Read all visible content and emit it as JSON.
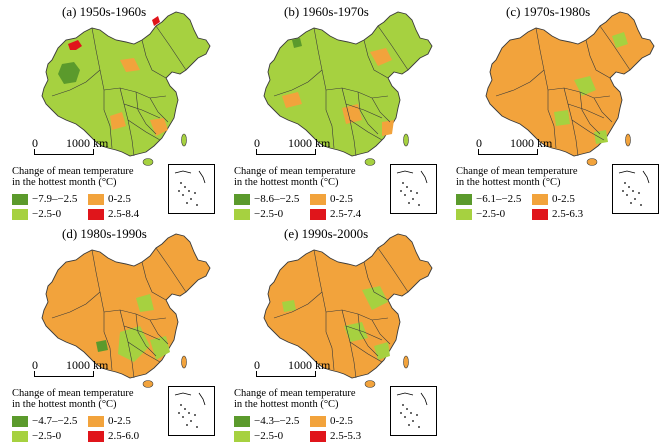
{
  "colors": {
    "dark_green": "#5b9a2c",
    "light_green": "#a6d140",
    "orange": "#f2a33c",
    "red": "#e0151b",
    "border": "#3a3a3a"
  },
  "scale_bar": {
    "zero": "0",
    "distance": "1000 km"
  },
  "legend_title_line1": "Change of mean temperature",
  "legend_title_line2": "in the hottest month (°C)",
  "panels": [
    {
      "title": "(a) 1950s-1960s",
      "dominant": "light_green",
      "legend": [
        {
          "label": "−7.9–−2.5",
          "color": "dark_green"
        },
        {
          "label": "0-2.5",
          "color": "orange"
        },
        {
          "label": "−2.5-0",
          "color": "light_green"
        },
        {
          "label": "2.5-8.4",
          "color": "red"
        }
      ]
    },
    {
      "title": "(b) 1960s-1970s",
      "dominant": "light_green",
      "legend": [
        {
          "label": "−8.6–−2.5",
          "color": "dark_green"
        },
        {
          "label": "0-2.5",
          "color": "orange"
        },
        {
          "label": "−2.5-0",
          "color": "light_green"
        },
        {
          "label": "2.5-7.4",
          "color": "red"
        }
      ]
    },
    {
      "title": "(c) 1970s-1980s",
      "dominant": "orange",
      "legend": [
        {
          "label": "−6.1–−2.5",
          "color": "dark_green"
        },
        {
          "label": "0-2.5",
          "color": "orange"
        },
        {
          "label": "−2.5-0",
          "color": "light_green"
        },
        {
          "label": "2.5-6.3",
          "color": "red"
        }
      ]
    },
    {
      "title": "(d) 1980s-1990s",
      "dominant": "orange",
      "legend": [
        {
          "label": "−4.7–−2.5",
          "color": "dark_green"
        },
        {
          "label": "0-2.5",
          "color": "orange"
        },
        {
          "label": "−2.5-0",
          "color": "light_green"
        },
        {
          "label": "2.5-6.0",
          "color": "red"
        }
      ]
    },
    {
      "title": "(e) 1990s-2000s",
      "dominant": "orange",
      "legend": [
        {
          "label": "−4.3–−2.5",
          "color": "dark_green"
        },
        {
          "label": "0-2.5",
          "color": "orange"
        },
        {
          "label": "−2.5-0",
          "color": "light_green"
        },
        {
          "label": "2.5-5.3",
          "color": "red"
        }
      ]
    }
  ]
}
